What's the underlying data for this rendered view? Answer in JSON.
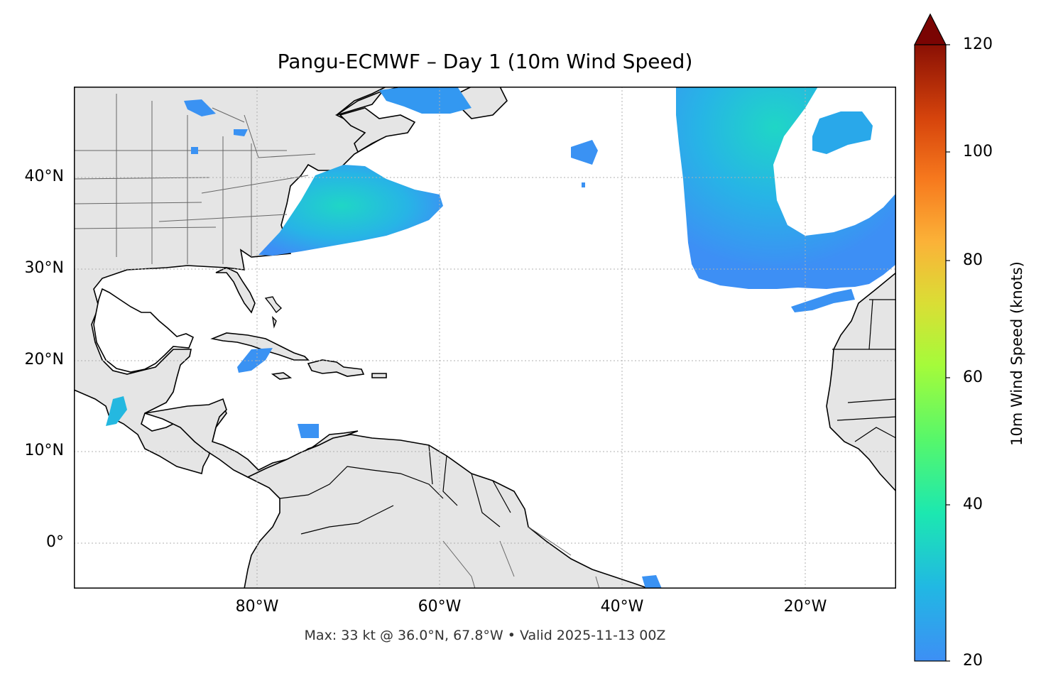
{
  "title": "Pangu-ECMWF – Day 1 (10m Wind Speed)",
  "subtitle": "Max: 33 kt @ 36.0°N, 67.8°W • Valid 2025-11-13 00Z",
  "map": {
    "lat_labels": [
      "40°N",
      "30°N",
      "20°N",
      "10°N",
      "0°"
    ],
    "lon_labels": [
      "80°W",
      "60°W",
      "40°W",
      "20°W"
    ],
    "land_color": "#e5e5e5",
    "coast_color": "#000000",
    "border_color": "#666666",
    "grid_color": "#b0b0b0"
  },
  "colorbar": {
    "title": "10m Wind Speed (knots)",
    "ticks": [
      "120",
      "100",
      "80",
      "60",
      "40",
      "20"
    ],
    "min": 20,
    "max": 120,
    "extend": "max",
    "colormap": "turbo"
  },
  "wind_colors": {
    "low": "#3d8ff5",
    "mid": "#27b4e6",
    "high": "#1fd6c6"
  }
}
